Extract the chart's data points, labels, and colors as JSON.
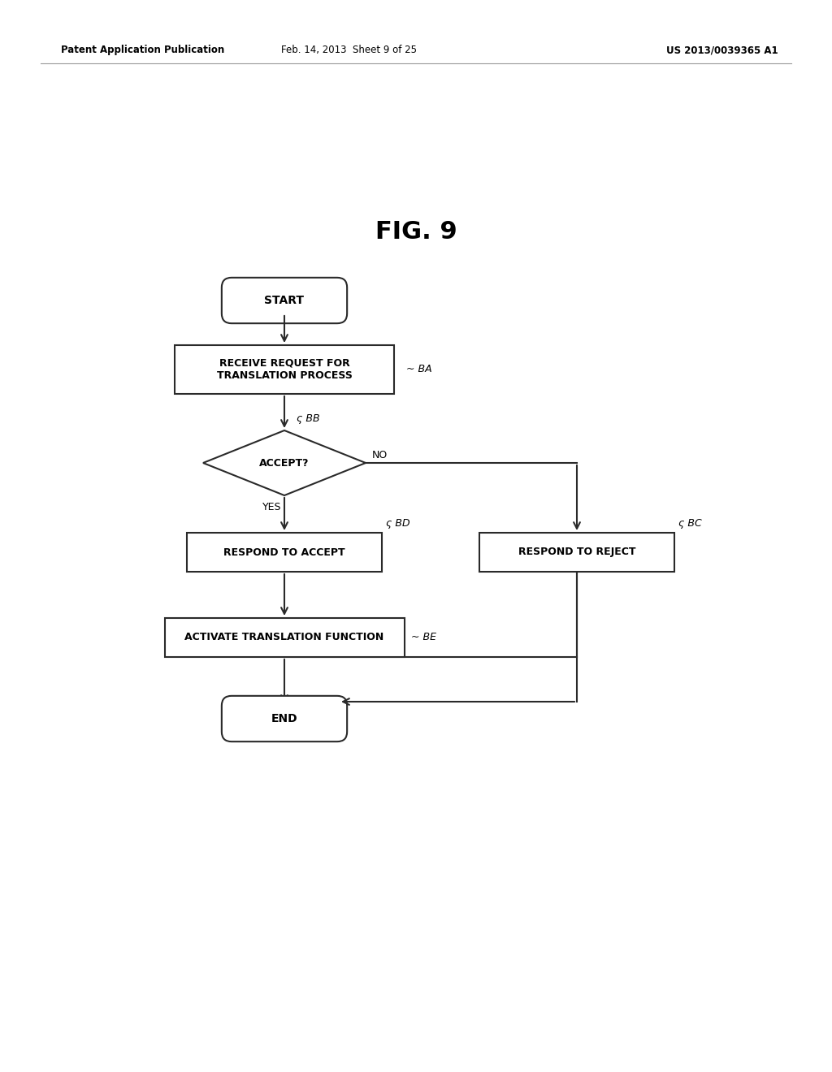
{
  "title": "FIG. 9",
  "header_left": "Patent Application Publication",
  "header_center": "Feb. 14, 2013  Sheet 9 of 25",
  "header_right": "US 2013/0039365 A1",
  "bg_color": "#ffffff",
  "line_color": "#2a2a2a",
  "text_color": "#000000",
  "start_text": "START",
  "end_text": "END",
  "ba_text": "RECEIVE REQUEST FOR\nTRANSLATION PROCESS",
  "ba_label": "BA",
  "bb_text": "ACCEPT?",
  "bb_label": "BB",
  "bd_text": "RESPOND TO ACCEPT",
  "bd_label": "BD",
  "bc_text": "RESPOND TO REJECT",
  "bc_label": "BC",
  "be_text": "ACTIVATE TRANSLATION FUNCTION",
  "be_label": "BE",
  "yes_text": "YES",
  "no_text": "NO"
}
